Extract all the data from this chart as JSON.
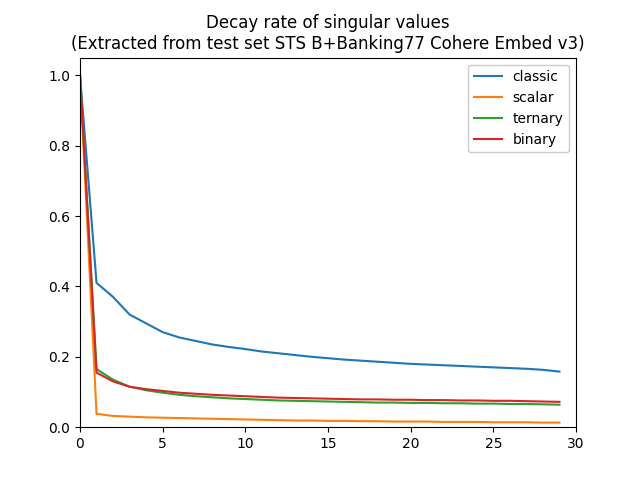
{
  "title_line1": "Decay rate of singular values",
  "title_line2": "(Extracted from test set STS B+Banking77 Cohere Embed v3)",
  "xlim": [
    0,
    30
  ],
  "ylim": [
    0,
    1.05
  ],
  "series": {
    "classic": {
      "color": "#1f77b4",
      "x": [
        0,
        1,
        2,
        3,
        4,
        5,
        6,
        7,
        8,
        9,
        10,
        11,
        12,
        13,
        14,
        15,
        16,
        17,
        18,
        19,
        20,
        21,
        22,
        23,
        24,
        25,
        26,
        27,
        28,
        29
      ],
      "y": [
        1.0,
        0.41,
        0.37,
        0.32,
        0.295,
        0.27,
        0.255,
        0.245,
        0.235,
        0.228,
        0.222,
        0.215,
        0.21,
        0.205,
        0.2,
        0.196,
        0.192,
        0.189,
        0.186,
        0.183,
        0.18,
        0.178,
        0.176,
        0.174,
        0.172,
        0.17,
        0.168,
        0.166,
        0.163,
        0.158
      ]
    },
    "scalar": {
      "color": "#ff7f0e",
      "x": [
        0,
        1,
        2,
        3,
        4,
        5,
        6,
        7,
        8,
        9,
        10,
        11,
        12,
        13,
        14,
        15,
        16,
        17,
        18,
        19,
        20,
        21,
        22,
        23,
        24,
        25,
        26,
        27,
        28,
        29
      ],
      "y": [
        1.0,
        0.038,
        0.032,
        0.03,
        0.028,
        0.027,
        0.026,
        0.025,
        0.024,
        0.023,
        0.022,
        0.021,
        0.02,
        0.019,
        0.019,
        0.018,
        0.018,
        0.017,
        0.017,
        0.016,
        0.016,
        0.016,
        0.015,
        0.015,
        0.015,
        0.014,
        0.014,
        0.014,
        0.013,
        0.013
      ]
    },
    "ternary": {
      "color": "#2ca02c",
      "x": [
        0,
        1,
        2,
        3,
        4,
        5,
        6,
        7,
        8,
        9,
        10,
        11,
        12,
        13,
        14,
        15,
        16,
        17,
        18,
        19,
        20,
        21,
        22,
        23,
        24,
        25,
        26,
        27,
        28,
        29
      ],
      "y": [
        1.0,
        0.165,
        0.135,
        0.115,
        0.105,
        0.098,
        0.092,
        0.088,
        0.085,
        0.082,
        0.08,
        0.078,
        0.076,
        0.075,
        0.074,
        0.073,
        0.072,
        0.071,
        0.07,
        0.07,
        0.069,
        0.069,
        0.068,
        0.068,
        0.067,
        0.067,
        0.066,
        0.066,
        0.065,
        0.064
      ]
    },
    "binary": {
      "color": "#d62728",
      "x": [
        0,
        1,
        2,
        3,
        4,
        5,
        6,
        7,
        8,
        9,
        10,
        11,
        12,
        13,
        14,
        15,
        16,
        17,
        18,
        19,
        20,
        21,
        22,
        23,
        24,
        25,
        26,
        27,
        28,
        29
      ],
      "y": [
        1.0,
        0.155,
        0.13,
        0.115,
        0.108,
        0.103,
        0.098,
        0.095,
        0.092,
        0.09,
        0.088,
        0.086,
        0.084,
        0.083,
        0.082,
        0.081,
        0.08,
        0.079,
        0.079,
        0.078,
        0.078,
        0.077,
        0.077,
        0.076,
        0.076,
        0.075,
        0.075,
        0.074,
        0.073,
        0.072
      ]
    }
  },
  "legend_order": [
    "classic",
    "scalar",
    "ternary",
    "binary"
  ],
  "xticks": [
    0,
    5,
    10,
    15,
    20,
    25,
    30
  ],
  "yticks": [
    0.0,
    0.2,
    0.4,
    0.6,
    0.8,
    1.0
  ],
  "title_fontsize": 12,
  "legend_fontsize": 10,
  "linewidth": 1.5
}
